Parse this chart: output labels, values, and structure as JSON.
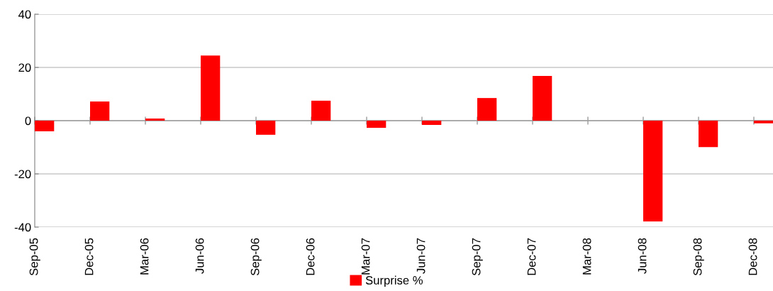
{
  "chart_data": {
    "type": "bar",
    "categories": [
      "Sep-05",
      "Dec-05",
      "Mar-06",
      "Jun-06",
      "Sep-06",
      "Dec-06",
      "Mar-07",
      "Jun-07",
      "Sep-07",
      "Dec-07",
      "Mar-08",
      "Jun-08",
      "Sep-08",
      "Dec-08"
    ],
    "series": [
      {
        "name": "Surprise %",
        "color": "#ff0000",
        "values": [
          -4,
          7.2,
          0.8,
          24.5,
          -5.3,
          7.5,
          -2.7,
          -1.6,
          8.5,
          16.8,
          0,
          -37.9,
          -9.9,
          -1
        ]
      }
    ],
    "ylim": [
      -40,
      40
    ],
    "yticks": [
      -40,
      -20,
      0,
      20,
      40
    ],
    "grid": "y",
    "legend": "bottom"
  }
}
